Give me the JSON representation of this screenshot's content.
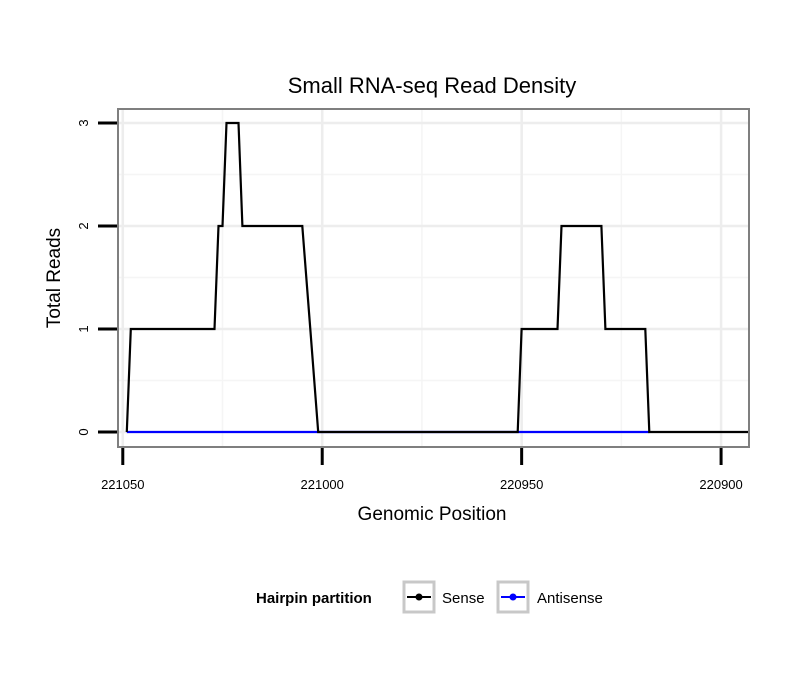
{
  "chart_data": {
    "type": "line",
    "title": "Small RNA-seq Read Density",
    "xlabel": "Genomic Position",
    "ylabel": "Total Reads",
    "x_reversed": true,
    "xlim": [
      221051,
      220893
    ],
    "ylim": [
      0,
      3
    ],
    "x_ticks": [
      221050,
      221000,
      220950,
      220900
    ],
    "x_tick_labels": [
      "221050",
      "221000",
      "220950",
      "220900"
    ],
    "y_ticks": [
      0,
      1,
      2,
      3
    ],
    "y_tick_labels": [
      "0",
      "1",
      "2",
      "3"
    ],
    "grid": true,
    "legend": {
      "title": "Hairpin partition",
      "position": "bottom",
      "entries": [
        {
          "label": "Sense",
          "color": "#000000"
        },
        {
          "label": "Antisense",
          "color": "#0000ff"
        }
      ]
    },
    "series": [
      {
        "name": "Sense",
        "color": "#000000",
        "x": [
          221049,
          221048,
          221027,
          221026,
          221025,
          221024,
          221023,
          221022,
          221021,
          221020,
          221005,
          221003,
          221001,
          220951,
          220950,
          220941,
          220940,
          220930,
          220929,
          220919,
          220918,
          220893
        ],
        "y": [
          0,
          1,
          1,
          2,
          2,
          3,
          3,
          3,
          3,
          2,
          2,
          1,
          0,
          0,
          1,
          1,
          2,
          2,
          1,
          1,
          0,
          0
        ]
      },
      {
        "name": "Antisense",
        "color": "#0000ff",
        "x": [
          221049,
          220918
        ],
        "y": [
          0,
          0
        ]
      }
    ]
  }
}
